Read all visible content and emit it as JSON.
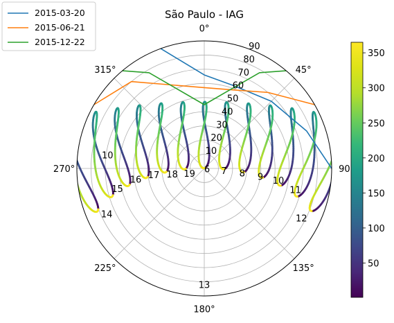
{
  "chart_data": {
    "type": "polar-line",
    "title": "São Paulo - IAG",
    "theta_direction": "clockwise",
    "theta_zero": "north",
    "theta_tick_labels": [
      "0°",
      "45°",
      "90",
      "135°",
      "180°",
      "225°",
      "270°",
      "315°"
    ],
    "theta_tick_degrees": [
      0,
      45,
      90,
      135,
      180,
      225,
      270,
      315
    ],
    "r_tick_labels": [
      "10",
      "20",
      "30",
      "40",
      "50",
      "60",
      "70",
      "80",
      "90"
    ],
    "r_range": [
      0,
      90
    ],
    "grid": true,
    "legend_position": "top-left",
    "series": [
      {
        "name": "2015-03-20",
        "color": "#1f77b4",
        "points": [
          [
            -20,
            90
          ],
          [
            0,
            66
          ],
          [
            20,
            62
          ],
          [
            45,
            67
          ],
          [
            70,
            77
          ],
          [
            90,
            90
          ]
        ]
      },
      {
        "name": "2015-06-21",
        "color": "#ff7f0e",
        "points": [
          [
            -60,
            90
          ],
          [
            -40,
            80
          ],
          [
            0,
            57
          ],
          [
            20,
            59
          ],
          [
            40,
            70
          ],
          [
            60,
            90
          ]
        ]
      },
      {
        "name": "2015-12-22",
        "color": "#2ca02c",
        "points": [
          [
            -40,
            90
          ],
          [
            -30,
            78
          ],
          [
            0,
            45
          ],
          [
            30,
            78
          ],
          [
            40,
            90
          ]
        ]
      }
    ],
    "hour_labels": [
      {
        "text": "6",
        "az": 98,
        "alt": 2
      },
      {
        "text": "7",
        "az": 96,
        "alt": 14
      },
      {
        "text": "8",
        "az": 97,
        "alt": 27
      },
      {
        "text": "9",
        "az": 98,
        "alt": 40
      },
      {
        "text": "10",
        "az": 99,
        "alt": 53
      },
      {
        "text": "11",
        "az": 103,
        "alt": 66
      },
      {
        "text": "12",
        "az": 117,
        "alt": 77
      },
      {
        "text": "13",
        "az": 180,
        "alt": 82
      },
      {
        "text": "14",
        "az": 245,
        "alt": 76
      },
      {
        "text": "15",
        "az": 257,
        "alt": 63
      },
      {
        "text": "16",
        "az": 261,
        "alt": 49
      },
      {
        "text": "17",
        "az": 263,
        "alt": 36
      },
      {
        "text": "18",
        "az": 260,
        "alt": 23
      },
      {
        "text": "19",
        "az": 252,
        "alt": 11
      },
      {
        "text": "10",
        "az": 278,
        "alt": 69
      }
    ],
    "analemma_hours": [
      6,
      7,
      8,
      9,
      10,
      11,
      12,
      13,
      14,
      15,
      16,
      17,
      18,
      19
    ],
    "colorbar": {
      "colormap": "viridis",
      "range": [
        1,
        365
      ],
      "ticks": [
        "50",
        "100",
        "150",
        "200",
        "250",
        "300",
        "350"
      ],
      "tick_values": [
        50,
        100,
        150,
        200,
        250,
        300,
        350
      ]
    }
  }
}
